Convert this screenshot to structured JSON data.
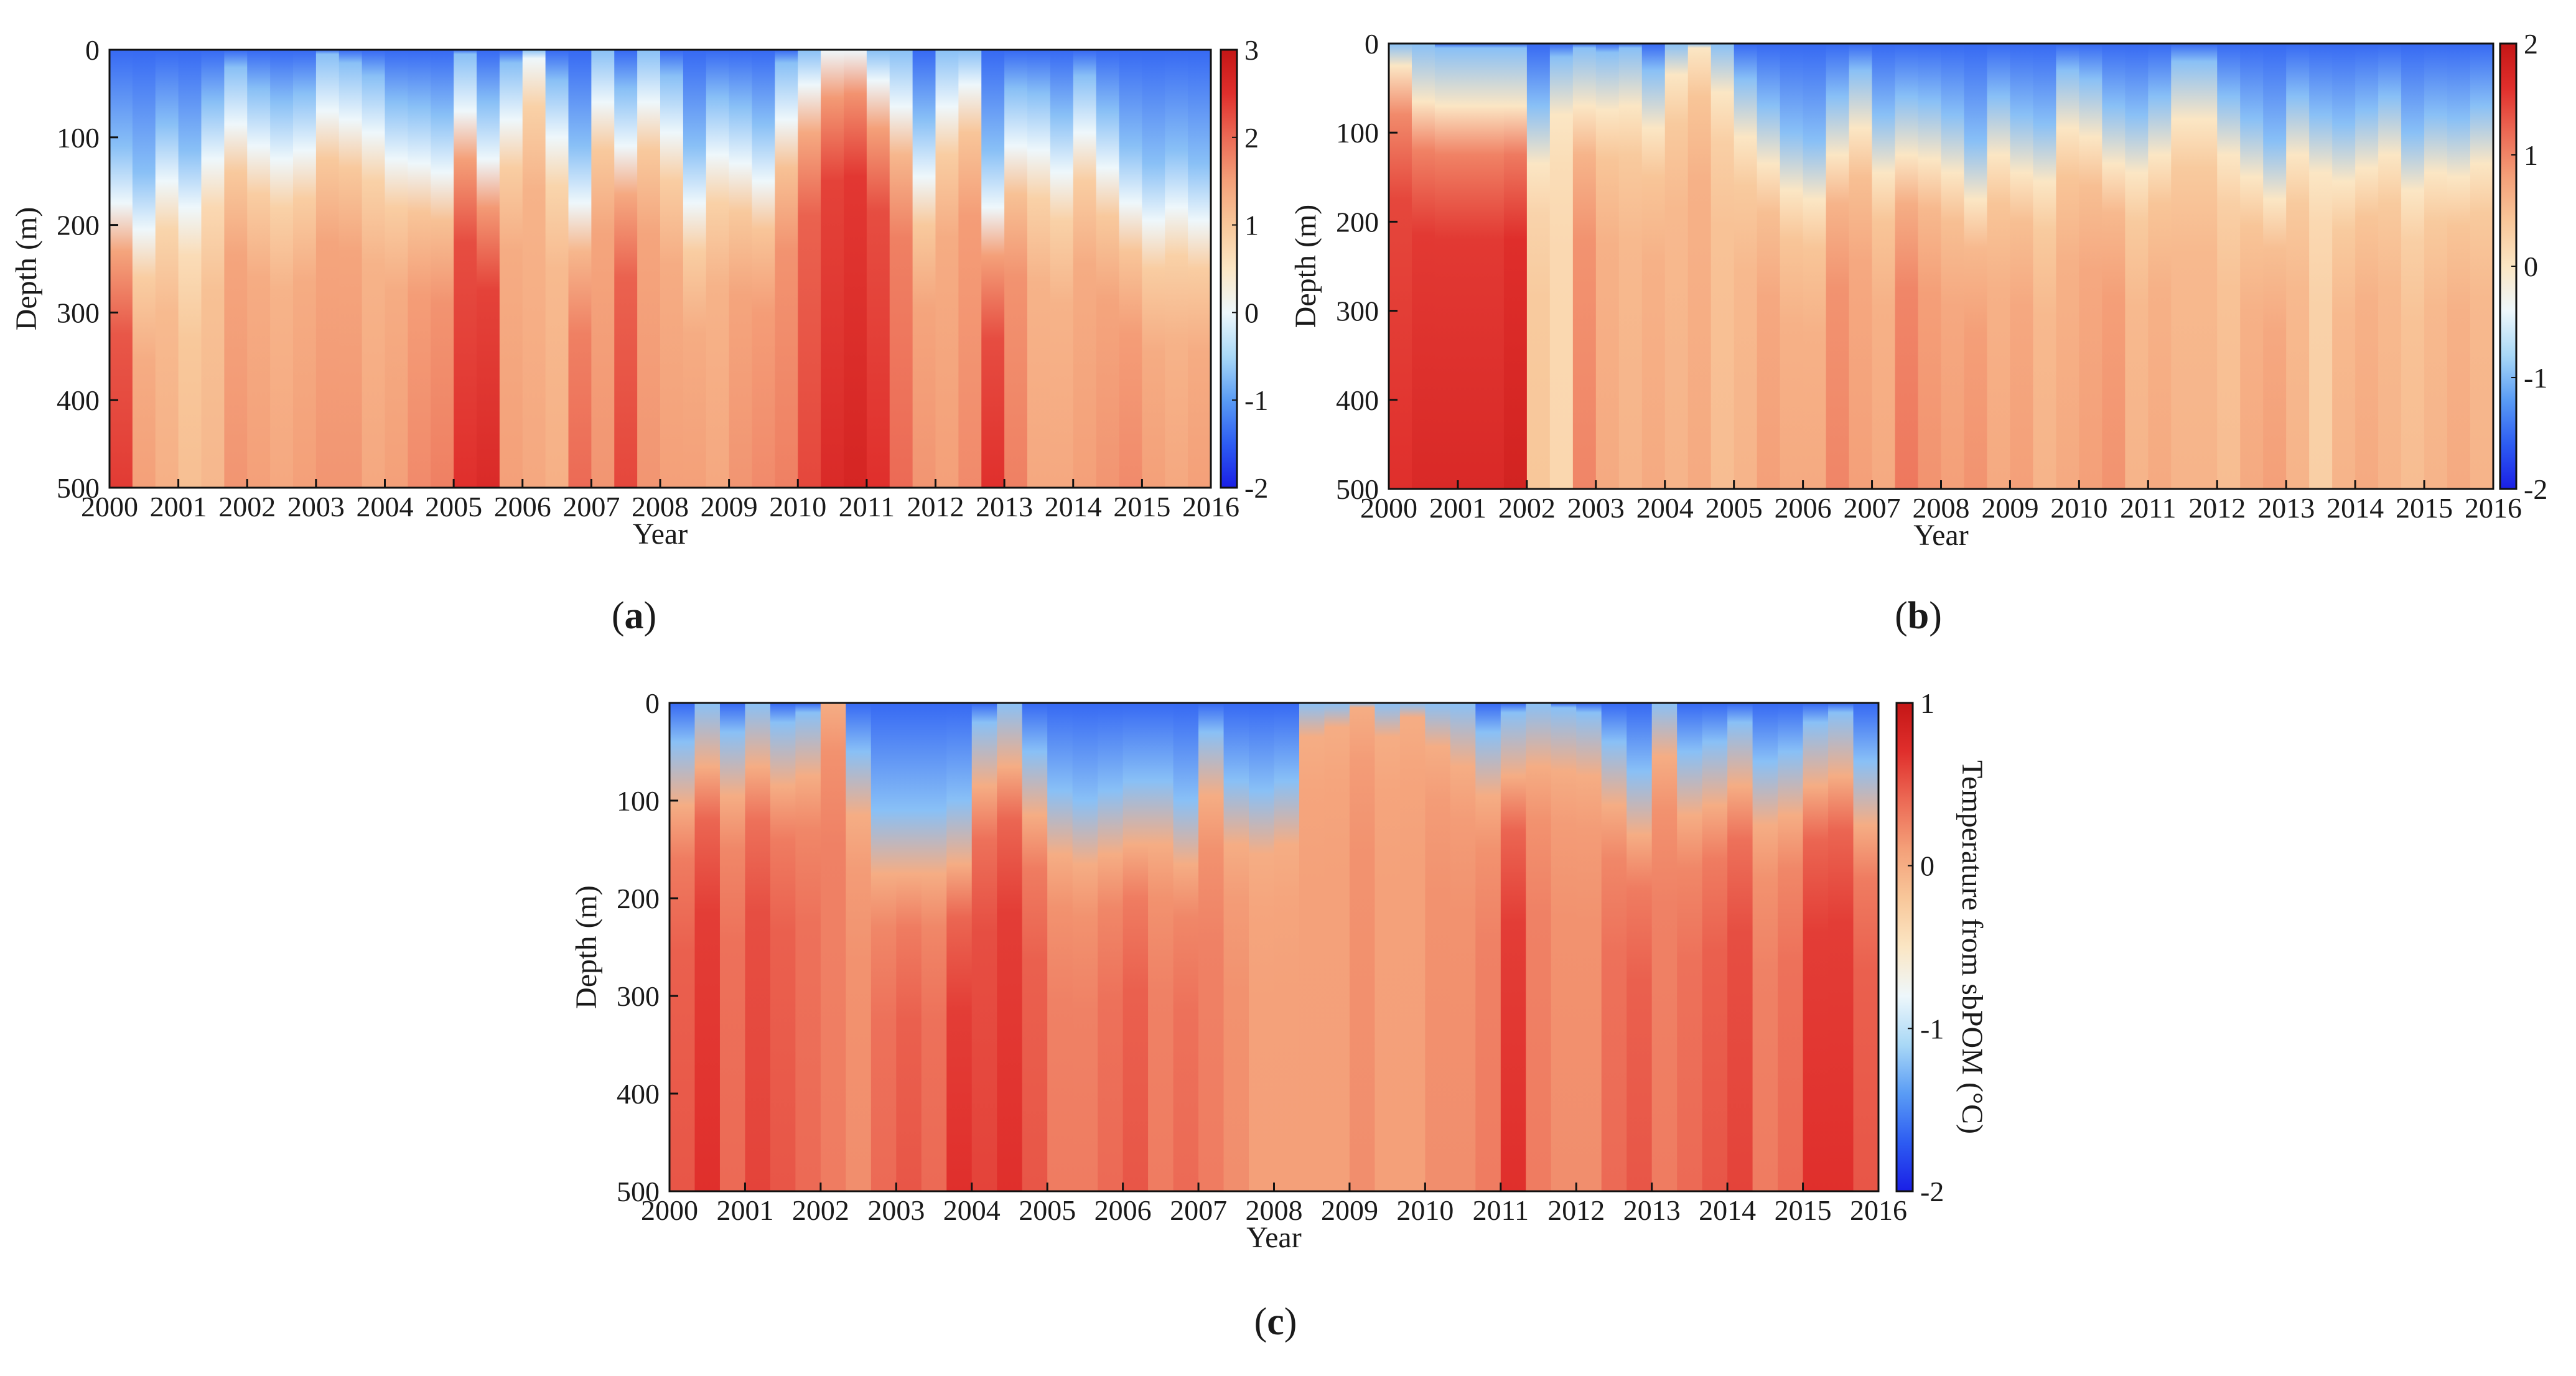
{
  "figure": {
    "panel_labels": [
      {
        "open": "(",
        "letter": "a",
        "close": ")"
      },
      {
        "open": "(",
        "letter": "b",
        "close": ")"
      },
      {
        "open": "(",
        "letter": "c",
        "close": ")"
      }
    ]
  },
  "colors": {
    "colormap": [
      "#1a1fe6",
      "#2d5cf2",
      "#5a9cf5",
      "#a9d8f6",
      "#eef7fb",
      "#fbe6c4",
      "#f8c79a",
      "#f4a079",
      "#ec6a55",
      "#e02f2c",
      "#c41616"
    ],
    "frame": "#111111"
  },
  "chart_data": [
    {
      "type": "heatmap",
      "panel": "a",
      "xlabel": "Year",
      "ylabel": "Depth (m)",
      "colorbar_label": "",
      "x_ticks": [
        "2000",
        "2001",
        "2002",
        "2003",
        "2004",
        "2005",
        "2006",
        "2007",
        "2008",
        "2009",
        "2010",
        "2011",
        "2012",
        "2013",
        "2014",
        "2015",
        "2016"
      ],
      "y_ticks": [
        "0",
        "100",
        "200",
        "300",
        "400",
        "500"
      ],
      "xlim": [
        2000,
        2016
      ],
      "ylim": [
        0,
        500
      ],
      "clim": [
        -2,
        3
      ],
      "colorbar_ticks": [
        "3",
        "2",
        "1",
        "0",
        "-1",
        "-2"
      ],
      "thermocline_depth_m": [
        200,
        230,
        175,
        205,
        150,
        110,
        135,
        150,
        140,
        95,
        105,
        120,
        150,
        155,
        165,
        95,
        150,
        105,
        35,
        125,
        200,
        85,
        135,
        85,
        120,
        200,
        145,
        155,
        175,
        105,
        65,
        25,
        20,
        60,
        90,
        170,
        90,
        65,
        205,
        135,
        140,
        165,
        120,
        160,
        200,
        220,
        205,
        220
      ],
      "deep_anomaly_C": [
        2.4,
        1.5,
        1.3,
        1.1,
        1.2,
        1.6,
        1.5,
        1.4,
        1.5,
        1.6,
        1.6,
        1.4,
        1.5,
        1.7,
        1.8,
        2.5,
        2.6,
        1.5,
        1.4,
        1.3,
        2.0,
        1.6,
        2.3,
        1.6,
        1.5,
        1.5,
        1.4,
        1.6,
        1.7,
        1.8,
        2.3,
        2.6,
        2.7,
        2.5,
        2.0,
        1.6,
        1.5,
        1.7,
        2.5,
        1.8,
        1.4,
        1.4,
        1.5,
        1.6,
        1.7,
        1.5,
        1.4,
        1.5
      ]
    },
    {
      "type": "heatmap",
      "panel": "b",
      "xlabel": "Year",
      "ylabel": "Depth (m)",
      "colorbar_label": "",
      "x_ticks": [
        "2000",
        "2001",
        "2002",
        "2003",
        "2004",
        "2005",
        "2006",
        "2007",
        "2008",
        "2009",
        "2010",
        "2011",
        "2012",
        "2013",
        "2014",
        "2015",
        "2016"
      ],
      "y_ticks": [
        "0",
        "100",
        "200",
        "300",
        "400",
        "500"
      ],
      "xlim": [
        2000,
        2016
      ],
      "ylim": [
        0,
        500
      ],
      "clim": [
        -2,
        2
      ],
      "colorbar_ticks": [
        "2",
        "1",
        "0",
        "-1",
        "-2"
      ],
      "thermocline_depth_m": [
        50,
        90,
        95,
        95,
        95,
        95,
        160,
        105,
        95,
        100,
        95,
        120,
        60,
        30,
        80,
        130,
        160,
        190,
        200,
        150,
        120,
        170,
        150,
        155,
        170,
        200,
        150,
        170,
        180,
        120,
        130,
        160,
        170,
        150,
        110,
        110,
        150,
        175,
        200,
        150,
        170,
        180,
        165,
        150,
        190,
        170,
        175,
        160
      ],
      "deep_anomaly_C": [
        1.6,
        1.7,
        1.7,
        1.7,
        1.7,
        1.8,
        0.4,
        0.2,
        1.0,
        0.7,
        0.6,
        0.7,
        0.6,
        0.7,
        0.5,
        0.6,
        0.8,
        0.7,
        0.7,
        1.0,
        0.8,
        0.7,
        1.1,
        0.9,
        0.8,
        0.9,
        0.7,
        0.8,
        0.6,
        0.7,
        0.8,
        0.9,
        0.6,
        0.7,
        0.6,
        0.6,
        0.5,
        0.7,
        0.8,
        0.6,
        0.3,
        0.6,
        0.7,
        0.6,
        0.5,
        0.6,
        0.7,
        0.6
      ]
    },
    {
      "type": "heatmap",
      "panel": "c",
      "xlabel": "Year",
      "ylabel": "Depth (m)",
      "colorbar_label": "Temperature from sbPOM (°C)",
      "x_ticks": [
        "2000",
        "2001",
        "2002",
        "2003",
        "2004",
        "2005",
        "2006",
        "2007",
        "2008",
        "2009",
        "2010",
        "2011",
        "2012",
        "2013",
        "2014",
        "2015",
        "2016"
      ],
      "y_ticks": [
        "0",
        "100",
        "200",
        "300",
        "400",
        "500"
      ],
      "xlim": [
        2000,
        2016
      ],
      "ylim": [
        0,
        500
      ],
      "clim": [
        -2,
        1
      ],
      "colorbar_ticks": [
        "1",
        "0",
        "-1",
        "-2"
      ],
      "thermocline_depth_m": [
        130,
        90,
        120,
        90,
        110,
        100,
        20,
        140,
        200,
        200,
        200,
        190,
        110,
        90,
        140,
        180,
        190,
        180,
        170,
        170,
        190,
        120,
        170,
        180,
        170,
        60,
        50,
        30,
        60,
        40,
        70,
        90,
        120,
        100,
        90,
        95,
        100,
        130,
        160,
        80,
        140,
        130,
        110,
        150,
        140,
        110,
        100,
        150
      ],
      "deep_anomaly_C": [
        0.5,
        0.7,
        0.4,
        0.6,
        0.5,
        0.4,
        0.3,
        0.2,
        0.4,
        0.5,
        0.4,
        0.7,
        0.6,
        0.7,
        0.5,
        0.3,
        0.3,
        0.4,
        0.5,
        0.3,
        0.4,
        0.3,
        0.2,
        0.1,
        0.1,
        0.1,
        0.1,
        0.2,
        0.1,
        0.1,
        0.2,
        0.2,
        0.3,
        0.7,
        0.3,
        0.2,
        0.2,
        0.4,
        0.5,
        0.3,
        0.4,
        0.5,
        0.6,
        0.3,
        0.4,
        0.7,
        0.7,
        0.5
      ]
    }
  ]
}
